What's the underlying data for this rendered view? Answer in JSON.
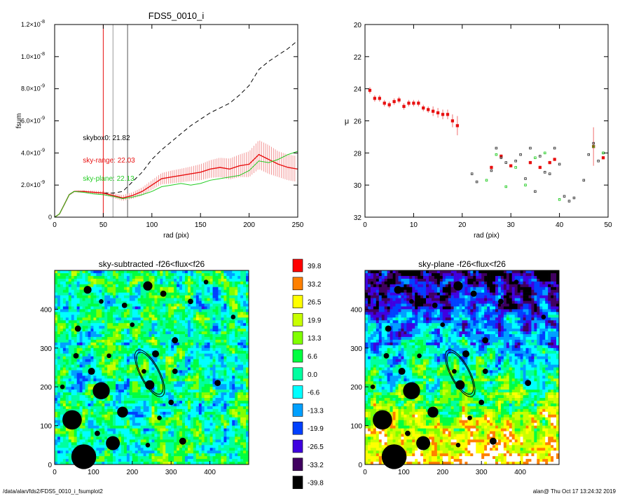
{
  "chart_data": [
    {
      "type": "line",
      "title": "FDS5_0010_i",
      "xlabel": "rad (pix)",
      "ylabel": "fsum",
      "xlim": [
        0,
        250
      ],
      "ylim": [
        0,
        1.2e-08
      ],
      "xticks": [
        "0",
        "50",
        "100",
        "150",
        "200",
        "250"
      ],
      "xtick_values": [
        0,
        50,
        100,
        150,
        200,
        250
      ],
      "yticks": [
        "0",
        "2.0×10",
        "4.0×10",
        "6.0×10",
        "8.0×10",
        "1.0×10",
        "1.2×10"
      ],
      "ytick_exponents": [
        "",
        "-9",
        "-9",
        "-9",
        "-9",
        "-8",
        "-8"
      ],
      "ytick_values": [
        0,
        2e-09,
        4e-09,
        6e-09,
        8e-09,
        1e-08,
        1.2e-08
      ],
      "vertical_lines": [
        {
          "x": 50,
          "color": "#e81010"
        },
        {
          "x": 60,
          "color": "#999999"
        },
        {
          "x": 75,
          "color": "#555555"
        }
      ],
      "annotations": [
        {
          "text": "skybox0: 21.82",
          "color": "#000000"
        },
        {
          "text": "sky-range: 22.03",
          "color": "#e81010"
        },
        {
          "text": "sky-plane: 22.13",
          "color": "#22cc22"
        }
      ],
      "series": [
        {
          "style": "dashed",
          "color": "#000000",
          "x": [
            0,
            5,
            10,
            15,
            20,
            30,
            40,
            50,
            60,
            70,
            80,
            90,
            100,
            110,
            120,
            130,
            140,
            150,
            160,
            170,
            180,
            190,
            200,
            210,
            220,
            230,
            240,
            250
          ],
          "y": [
            0,
            2e-10,
            8e-10,
            1.4e-09,
            1.6e-09,
            1.6e-09,
            1.55e-09,
            1.5e-09,
            1.5e-09,
            1.6e-09,
            2.2e-09,
            2.8e-09,
            3.6e-09,
            4.2e-09,
            4.7e-09,
            5.2e-09,
            5.7e-09,
            6.1e-09,
            6.5e-09,
            6.8e-09,
            7.1e-09,
            7.6e-09,
            8.2e-09,
            9.2e-09,
            9.7e-09,
            1.01e-08,
            1.05e-08,
            1.1e-08
          ]
        },
        {
          "style": "solid",
          "color": "#e81010",
          "error_band": true,
          "x": [
            0,
            5,
            10,
            15,
            20,
            30,
            40,
            50,
            60,
            70,
            80,
            90,
            100,
            110,
            120,
            130,
            140,
            150,
            160,
            170,
            180,
            190,
            200,
            210,
            220,
            230,
            240,
            250
          ],
          "y": [
            0,
            2e-10,
            8e-10,
            1.4e-09,
            1.6e-09,
            1.6e-09,
            1.55e-09,
            1.5e-09,
            1.35e-09,
            1.2e-09,
            1.35e-09,
            1.6e-09,
            2e-09,
            2.4e-09,
            2.5e-09,
            2.6e-09,
            2.7e-09,
            2.8e-09,
            3e-09,
            3.1e-09,
            3e-09,
            3.2e-09,
            3.3e-09,
            3.9e-09,
            3.6e-09,
            3.3e-09,
            3.1e-09,
            3e-09
          ],
          "err": [
            0,
            5e-11,
            5e-11,
            5e-11,
            6e-11,
            8e-11,
            1e-10,
            1.2e-10,
            1.5e-10,
            1.8e-10,
            2e-10,
            2.5e-10,
            3e-10,
            3.5e-10,
            4e-10,
            4.2e-10,
            4.5e-10,
            5e-10,
            5.5e-10,
            6e-10,
            6.5e-10,
            7e-10,
            8e-10,
            9e-10,
            9e-10,
            8e-10,
            8e-10,
            8e-10
          ]
        },
        {
          "style": "solid",
          "color": "#22cc22",
          "x": [
            0,
            5,
            10,
            15,
            20,
            30,
            40,
            50,
            60,
            70,
            80,
            90,
            100,
            110,
            120,
            130,
            140,
            150,
            160,
            170,
            180,
            190,
            200,
            210,
            220,
            230,
            240,
            250
          ],
          "y": [
            0,
            2e-10,
            8e-10,
            1.4e-09,
            1.6e-09,
            1.55e-09,
            1.45e-09,
            1.4e-09,
            1.3e-09,
            1.15e-09,
            1.25e-09,
            1.4e-09,
            1.6e-09,
            1.9e-09,
            2e-09,
            2.1e-09,
            2e-09,
            2.1e-09,
            2.3e-09,
            2.4e-09,
            2.5e-09,
            2.6e-09,
            2.9e-09,
            3.5e-09,
            3.4e-09,
            3.6e-09,
            3.9e-09,
            4.1e-09
          ]
        }
      ]
    },
    {
      "type": "scatter",
      "title": "",
      "xlabel": "rad (pix)",
      "ylabel": "μ",
      "xlim": [
        0,
        50
      ],
      "ylim": [
        32,
        20
      ],
      "xticks": [
        "0",
        "10",
        "20",
        "30",
        "40",
        "50"
      ],
      "xtick_values": [
        0,
        10,
        20,
        30,
        40,
        50
      ],
      "yticks": [
        "20",
        "22",
        "24",
        "26",
        "28",
        "30",
        "32"
      ],
      "ytick_values": [
        20,
        22,
        24,
        26,
        28,
        30,
        32
      ],
      "series": [
        {
          "marker": "square",
          "color": "#e81010",
          "error_color": "#f07070",
          "x": [
            1,
            2,
            3,
            4,
            5,
            6,
            7,
            8,
            9,
            10,
            11,
            12,
            13,
            14,
            15,
            16,
            17,
            18,
            19,
            26,
            28,
            30,
            34,
            36,
            38,
            39,
            47,
            49
          ],
          "y": [
            24.1,
            24.6,
            24.6,
            24.9,
            25.0,
            24.8,
            24.7,
            25.1,
            24.9,
            24.9,
            24.9,
            25.2,
            25.3,
            25.4,
            25.5,
            25.6,
            25.6,
            26.0,
            26.3,
            28.9,
            28.2,
            28.8,
            28.6,
            28.9,
            28.6,
            28.4,
            27.6,
            28.3
          ],
          "err": [
            0.2,
            0.2,
            0.2,
            0.2,
            0.2,
            0.2,
            0.2,
            0.2,
            0.2,
            0.2,
            0.2,
            0.2,
            0.2,
            0.3,
            0.3,
            0.3,
            0.3,
            0.4,
            0.6,
            0.1,
            0.1,
            0.1,
            0.1,
            0.1,
            0.1,
            0.1,
            1.2,
            0.1
          ]
        },
        {
          "marker": "square",
          "color": "#333333",
          "x": [
            22,
            23,
            26,
            27,
            28,
            29,
            31,
            32,
            33,
            34,
            35,
            36,
            37,
            38,
            39,
            40,
            41,
            42,
            43,
            45,
            46,
            47,
            48,
            49
          ],
          "y": [
            29.3,
            29.8,
            29.1,
            27.7,
            28.3,
            28.6,
            28.5,
            28.1,
            29.6,
            27.7,
            30.4,
            28.2,
            29.2,
            29.3,
            27.7,
            28.7,
            30.7,
            31.0,
            30.8,
            29.7,
            28.1,
            27.4,
            28.5,
            28.0
          ],
          "err": []
        },
        {
          "marker": "square",
          "color": "#22cc22",
          "x": [
            25,
            27,
            29,
            31,
            33,
            35,
            37,
            40,
            47,
            49
          ],
          "y": [
            29.7,
            28.1,
            30.1,
            28.9,
            30.0,
            28.3,
            28.0,
            30.9,
            27.6,
            28.0
          ],
          "err": []
        }
      ]
    },
    {
      "type": "heatmap",
      "title": "sky-subtracted -f26<flux<f26",
      "xlim": [
        0,
        500
      ],
      "ylim": [
        0,
        500
      ],
      "xticks": [
        "0",
        "100",
        "200",
        "300",
        "400"
      ],
      "xtick_values": [
        0,
        100,
        200,
        300,
        400
      ],
      "yticks": [
        "0",
        "100",
        "200",
        "300",
        "400"
      ],
      "ytick_values": [
        0,
        100,
        200,
        300,
        400
      ],
      "gradient": 0,
      "masked_sources": [
        [
          75,
          20,
          32
        ],
        [
          150,
          55,
          18
        ],
        [
          45,
          115,
          25
        ],
        [
          120,
          190,
          22
        ],
        [
          175,
          135,
          14
        ],
        [
          260,
          285,
          9
        ],
        [
          245,
          205,
          12
        ],
        [
          310,
          320,
          8
        ],
        [
          350,
          420,
          7
        ],
        [
          240,
          460,
          12
        ],
        [
          85,
          450,
          10
        ],
        [
          60,
          350,
          8
        ],
        [
          310,
          240,
          7
        ],
        [
          330,
          60,
          9
        ],
        [
          270,
          120,
          6
        ],
        [
          200,
          360,
          6
        ],
        [
          140,
          280,
          6
        ],
        [
          95,
          240,
          9
        ],
        [
          180,
          410,
          7
        ],
        [
          420,
          210,
          8
        ],
        [
          390,
          470,
          6
        ],
        [
          20,
          200,
          6
        ],
        [
          110,
          80,
          7
        ],
        [
          240,
          50,
          6
        ],
        [
          300,
          160,
          7
        ],
        [
          460,
          380,
          6
        ],
        [
          120,
          420,
          6
        ],
        [
          230,
          240,
          6
        ],
        [
          280,
          440,
          8
        ],
        [
          55,
          280,
          7
        ]
      ],
      "ellipses": [
        {
          "cx": 245,
          "cy": 235,
          "rx": 22,
          "ry": 60,
          "angle": -28
        }
      ]
    },
    {
      "type": "heatmap",
      "title": "sky-plane -f26<flux<f26",
      "xlim": [
        0,
        500
      ],
      "ylim": [
        0,
        500
      ],
      "xticks": [
        "0",
        "100",
        "200",
        "300",
        "400"
      ],
      "xtick_values": [
        0,
        100,
        200,
        300,
        400
      ],
      "yticks": [
        "0",
        "100",
        "200",
        "300",
        "400"
      ],
      "ytick_values": [
        0,
        100,
        200,
        300,
        400
      ],
      "gradient": 1,
      "masked_sources": [
        [
          75,
          20,
          32
        ],
        [
          150,
          55,
          18
        ],
        [
          45,
          115,
          25
        ],
        [
          120,
          190,
          22
        ],
        [
          175,
          135,
          14
        ],
        [
          260,
          285,
          9
        ],
        [
          245,
          205,
          12
        ],
        [
          310,
          320,
          8
        ],
        [
          350,
          420,
          7
        ],
        [
          240,
          460,
          12
        ],
        [
          85,
          450,
          10
        ],
        [
          60,
          350,
          8
        ],
        [
          310,
          240,
          7
        ],
        [
          330,
          60,
          9
        ],
        [
          270,
          120,
          6
        ],
        [
          200,
          360,
          6
        ],
        [
          140,
          280,
          6
        ],
        [
          95,
          240,
          9
        ],
        [
          180,
          410,
          7
        ],
        [
          420,
          210,
          8
        ],
        [
          390,
          470,
          6
        ],
        [
          20,
          200,
          6
        ],
        [
          110,
          80,
          7
        ],
        [
          240,
          50,
          6
        ],
        [
          300,
          160,
          7
        ],
        [
          460,
          380,
          6
        ],
        [
          120,
          420,
          6
        ],
        [
          230,
          240,
          6
        ],
        [
          280,
          440,
          8
        ],
        [
          55,
          280,
          7
        ]
      ],
      "ellipses": [
        {
          "cx": 245,
          "cy": 235,
          "rx": 22,
          "ry": 60,
          "angle": -28
        }
      ]
    }
  ],
  "colorbar": {
    "levels": [
      {
        "label": "39.8",
        "color": "#ff0000"
      },
      {
        "label": "33.2",
        "color": "#ff8000"
      },
      {
        "label": "26.5",
        "color": "#ffff00"
      },
      {
        "label": "19.9",
        "color": "#c8ff00"
      },
      {
        "label": "13.3",
        "color": "#80ff00"
      },
      {
        "label": "6.6",
        "color": "#00ff40"
      },
      {
        "label": "0.0",
        "color": "#00ffa0"
      },
      {
        "label": "-6.6",
        "color": "#00ffff"
      },
      {
        "label": "-13.3",
        "color": "#00a0ff"
      },
      {
        "label": "-19.9",
        "color": "#0040ff"
      },
      {
        "label": "-26.5",
        "color": "#4000e0"
      },
      {
        "label": "-33.2",
        "color": "#400060"
      },
      {
        "label": "-39.8",
        "color": "#000000"
      }
    ]
  },
  "footer": {
    "path": "/data/alan/fds2/FDS5_0010_i_fsumplot2",
    "user_time": "alan@  Thu Oct 17 13:24:32 2019"
  }
}
